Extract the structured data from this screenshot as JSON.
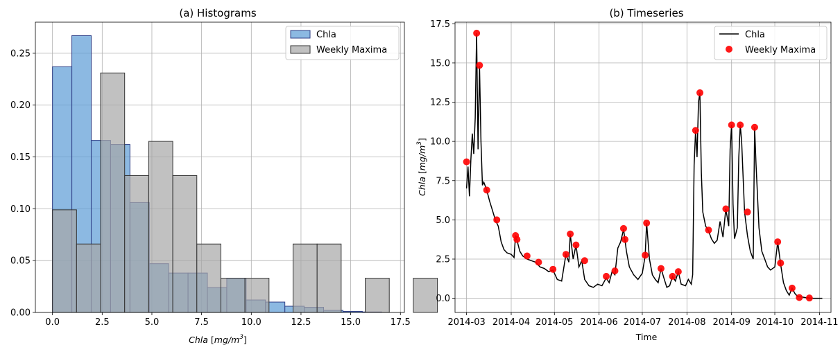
{
  "chart_data": [
    {
      "type": "bar",
      "title": "(a) Histograms",
      "xlabel": "Chla [mg/m³]",
      "ylabel": "",
      "xlim": [
        -0.86,
        17.7
      ],
      "ylim": [
        0,
        0.28
      ],
      "xticks": [
        "0.0",
        "2.5",
        "5.0",
        "7.5",
        "10.0",
        "12.5",
        "15.0",
        "17.5"
      ],
      "yticks": [
        "0.00",
        "0.05",
        "0.10",
        "0.15",
        "0.20",
        "0.25"
      ],
      "grid": true,
      "legend_position": "top-right",
      "series": [
        {
          "name": "Chla",
          "color": "#5b9bd5",
          "bin_width": 0.974,
          "bins": [
            {
              "x0": 0.0,
              "density": 0.237
            },
            {
              "x0": 0.974,
              "density": 0.267
            },
            {
              "x0": 1.948,
              "density": 0.166
            },
            {
              "x0": 2.922,
              "density": 0.162
            },
            {
              "x0": 3.896,
              "density": 0.106
            },
            {
              "x0": 4.87,
              "density": 0.047
            },
            {
              "x0": 5.844,
              "density": 0.038
            },
            {
              "x0": 6.818,
              "density": 0.038
            },
            {
              "x0": 7.792,
              "density": 0.024
            },
            {
              "x0": 8.766,
              "density": 0.033
            },
            {
              "x0": 9.74,
              "density": 0.012
            },
            {
              "x0": 10.714,
              "density": 0.01
            },
            {
              "x0": 11.688,
              "density": 0.006
            },
            {
              "x0": 12.662,
              "density": 0.005
            },
            {
              "x0": 13.636,
              "density": 0.002
            },
            {
              "x0": 14.61,
              "density": 0.001
            },
            {
              "x0": 15.584,
              "density": 0.0005
            }
          ]
        },
        {
          "name": "Weekly Maxima",
          "color": "#a6a6a6",
          "bin_width": 1.21,
          "bins": [
            {
              "x0": 0.0,
              "density": 0.099
            },
            {
              "x0": 1.21,
              "density": 0.066
            },
            {
              "x0": 2.42,
              "density": 0.231
            },
            {
              "x0": 3.63,
              "density": 0.132
            },
            {
              "x0": 4.84,
              "density": 0.165
            },
            {
              "x0": 6.05,
              "density": 0.132
            },
            {
              "x0": 7.26,
              "density": 0.066
            },
            {
              "x0": 8.47,
              "density": 0.033
            },
            {
              "x0": 9.68,
              "density": 0.033
            },
            {
              "x0": 10.89,
              "density": 0.0
            },
            {
              "x0": 12.1,
              "density": 0.066
            },
            {
              "x0": 13.31,
              "density": 0.066
            },
            {
              "x0": 14.52,
              "density": 0.0
            },
            {
              "x0": 15.73,
              "density": 0.033
            },
            {
              "x0": 16.94,
              "density": 0.0
            },
            {
              "x0": 18.15,
              "density": 0.033
            },
            {
              "x0": 19.36,
              "density": 0.0
            }
          ]
        }
      ]
    },
    {
      "type": "line",
      "title": "(b) Timeseries",
      "xlabel": "Time",
      "ylabel": "Chla [mg/m³]",
      "xlim": [
        "2014-02-21",
        "2014-11-09"
      ],
      "ylim": [
        -0.9,
        17.6
      ],
      "xticks": [
        "2014-03",
        "2014-04",
        "2014-05",
        "2014-06",
        "2014-07",
        "2014-08",
        "2014-09",
        "2014-10",
        "2014-11"
      ],
      "yticks": [
        "0.0",
        "2.5",
        "5.0",
        "7.5",
        "10.0",
        "12.5",
        "15.0",
        "17.5"
      ],
      "grid": true,
      "legend_position": "top-right",
      "series": [
        {
          "name": "Chla",
          "color": "#000000",
          "points": [
            [
              "2014-03-01",
              7.0
            ],
            [
              "2014-03-02",
              8.4
            ],
            [
              "2014-03-03",
              6.5
            ],
            [
              "2014-03-04",
              8.8
            ],
            [
              "2014-03-05",
              10.5
            ],
            [
              "2014-03-06",
              9.2
            ],
            [
              "2014-03-07",
              11.5
            ],
            [
              "2014-03-08",
              16.9
            ],
            [
              "2014-03-09",
              9.5
            ],
            [
              "2014-03-10",
              14.8
            ],
            [
              "2014-03-11",
              10.0
            ],
            [
              "2014-03-12",
              7.2
            ],
            [
              "2014-03-13",
              7.4
            ],
            [
              "2014-03-15",
              6.9
            ],
            [
              "2014-03-17",
              6.2
            ],
            [
              "2014-03-19",
              5.6
            ],
            [
              "2014-03-21",
              5.0
            ],
            [
              "2014-03-23",
              4.6
            ],
            [
              "2014-03-25",
              3.6
            ],
            [
              "2014-03-27",
              3.1
            ],
            [
              "2014-03-29",
              2.9
            ],
            [
              "2014-04-01",
              2.8
            ],
            [
              "2014-04-03",
              2.6
            ],
            [
              "2014-04-04",
              4.0
            ],
            [
              "2014-04-05",
              3.7
            ],
            [
              "2014-04-07",
              3.0
            ],
            [
              "2014-04-09",
              2.7
            ],
            [
              "2014-04-12",
              2.5
            ],
            [
              "2014-04-15",
              2.4
            ],
            [
              "2014-04-18",
              2.3
            ],
            [
              "2014-04-21",
              2.0
            ],
            [
              "2014-04-24",
              1.9
            ],
            [
              "2014-04-27",
              1.7
            ],
            [
              "2014-04-30",
              1.8
            ],
            [
              "2014-05-03",
              1.2
            ],
            [
              "2014-05-06",
              1.1
            ],
            [
              "2014-05-09",
              2.8
            ],
            [
              "2014-05-11",
              2.3
            ],
            [
              "2014-05-12",
              4.1
            ],
            [
              "2014-05-14",
              2.5
            ],
            [
              "2014-05-16",
              3.4
            ],
            [
              "2014-05-18",
              2.0
            ],
            [
              "2014-05-20",
              2.4
            ],
            [
              "2014-05-22",
              1.2
            ],
            [
              "2014-05-25",
              0.8
            ],
            [
              "2014-05-28",
              0.7
            ],
            [
              "2014-05-31",
              0.9
            ],
            [
              "2014-06-03",
              0.8
            ],
            [
              "2014-06-06",
              1.3
            ],
            [
              "2014-06-08",
              1.0
            ],
            [
              "2014-06-10",
              1.7
            ],
            [
              "2014-06-12",
              1.5
            ],
            [
              "2014-06-14",
              3.2
            ],
            [
              "2014-06-16",
              3.6
            ],
            [
              "2014-06-18",
              4.4
            ],
            [
              "2014-06-20",
              3.0
            ],
            [
              "2014-06-22",
              2.0
            ],
            [
              "2014-06-25",
              1.5
            ],
            [
              "2014-06-28",
              1.2
            ],
            [
              "2014-07-01",
              1.6
            ],
            [
              "2014-07-03",
              2.7
            ],
            [
              "2014-07-04",
              4.8
            ],
            [
              "2014-07-06",
              2.5
            ],
            [
              "2014-07-08",
              1.5
            ],
            [
              "2014-07-10",
              1.2
            ],
            [
              "2014-07-12",
              1.0
            ],
            [
              "2014-07-14",
              1.9
            ],
            [
              "2014-07-16",
              1.3
            ],
            [
              "2014-07-18",
              0.7
            ],
            [
              "2014-07-20",
              0.8
            ],
            [
              "2014-07-22",
              1.4
            ],
            [
              "2014-07-24",
              1.1
            ],
            [
              "2014-07-26",
              1.7
            ],
            [
              "2014-07-28",
              0.9
            ],
            [
              "2014-07-31",
              0.8
            ],
            [
              "2014-08-02",
              1.2
            ],
            [
              "2014-08-04",
              0.9
            ],
            [
              "2014-08-05",
              1.5
            ],
            [
              "2014-08-06",
              8.5
            ],
            [
              "2014-08-07",
              10.7
            ],
            [
              "2014-08-08",
              9.0
            ],
            [
              "2014-08-09",
              12.5
            ],
            [
              "2014-08-10",
              13.1
            ],
            [
              "2014-08-11",
              8.0
            ],
            [
              "2014-08-12",
              5.5
            ],
            [
              "2014-08-14",
              4.6
            ],
            [
              "2014-08-16",
              4.3
            ],
            [
              "2014-08-18",
              3.8
            ],
            [
              "2014-08-20",
              3.5
            ],
            [
              "2014-08-22",
              3.7
            ],
            [
              "2014-08-24",
              4.9
            ],
            [
              "2014-08-26",
              3.9
            ],
            [
              "2014-08-28",
              5.7
            ],
            [
              "2014-08-30",
              4.6
            ],
            [
              "2014-08-31",
              9.5
            ],
            [
              "2014-09-01",
              11.05
            ],
            [
              "2014-09-02",
              6.0
            ],
            [
              "2014-09-03",
              3.8
            ],
            [
              "2014-09-05",
              4.5
            ],
            [
              "2014-09-06",
              9.0
            ],
            [
              "2014-09-07",
              11.05
            ],
            [
              "2014-09-08",
              10.0
            ],
            [
              "2014-09-10",
              5.5
            ],
            [
              "2014-09-12",
              4.0
            ],
            [
              "2014-09-14",
              3.0
            ],
            [
              "2014-09-16",
              2.5
            ],
            [
              "2014-09-17",
              10.9
            ],
            [
              "2014-09-18",
              8.5
            ],
            [
              "2014-09-20",
              4.5
            ],
            [
              "2014-09-22",
              3.0
            ],
            [
              "2014-09-24",
              2.5
            ],
            [
              "2014-09-26",
              2.0
            ],
            [
              "2014-09-28",
              1.8
            ],
            [
              "2014-10-01",
              2.0
            ],
            [
              "2014-10-03",
              3.6
            ],
            [
              "2014-10-05",
              2.2
            ],
            [
              "2014-10-07",
              1.0
            ],
            [
              "2014-10-09",
              0.5
            ],
            [
              "2014-10-11",
              0.2
            ],
            [
              "2014-10-13",
              0.65
            ],
            [
              "2014-10-15",
              0.3
            ],
            [
              "2014-10-17",
              0.1
            ],
            [
              "2014-10-19",
              0.1
            ],
            [
              "2014-10-22",
              0.05
            ],
            [
              "2014-10-25",
              0.02
            ],
            [
              "2014-10-28",
              0.0
            ],
            [
              "2014-10-31",
              0.0
            ],
            [
              "2014-11-03",
              0.0
            ]
          ]
        },
        {
          "name": "Weekly Maxima",
          "color": "#ff0000",
          "points": [
            [
              "2014-03-01",
              8.7
            ],
            [
              "2014-03-08",
              16.9
            ],
            [
              "2014-03-10",
              14.85
            ],
            [
              "2014-03-15",
              6.9
            ],
            [
              "2014-03-22",
              5.0
            ],
            [
              "2014-04-04",
              4.0
            ],
            [
              "2014-04-05",
              3.75
            ],
            [
              "2014-04-12",
              2.7
            ],
            [
              "2014-04-20",
              2.3
            ],
            [
              "2014-04-30",
              1.85
            ],
            [
              "2014-05-09",
              2.8
            ],
            [
              "2014-05-12",
              4.1
            ],
            [
              "2014-05-16",
              3.4
            ],
            [
              "2014-05-22",
              2.4
            ],
            [
              "2014-06-06",
              1.4
            ],
            [
              "2014-06-12",
              1.75
            ],
            [
              "2014-06-18",
              4.45
            ],
            [
              "2014-06-19",
              3.75
            ],
            [
              "2014-07-03",
              2.75
            ],
            [
              "2014-07-04",
              4.8
            ],
            [
              "2014-07-14",
              1.9
            ],
            [
              "2014-07-22",
              1.4
            ],
            [
              "2014-07-26",
              1.7
            ],
            [
              "2014-08-07",
              10.7
            ],
            [
              "2014-08-10",
              13.1
            ],
            [
              "2014-08-16",
              4.35
            ],
            [
              "2014-08-28",
              5.7
            ],
            [
              "2014-09-01",
              11.05
            ],
            [
              "2014-09-07",
              11.05
            ],
            [
              "2014-09-12",
              5.5
            ],
            [
              "2014-09-17",
              10.9
            ],
            [
              "2014-10-03",
              3.6
            ],
            [
              "2014-10-05",
              2.25
            ],
            [
              "2014-10-13",
              0.65
            ],
            [
              "2014-10-18",
              0.05
            ],
            [
              "2014-10-25",
              0.02
            ]
          ]
        }
      ]
    }
  ]
}
